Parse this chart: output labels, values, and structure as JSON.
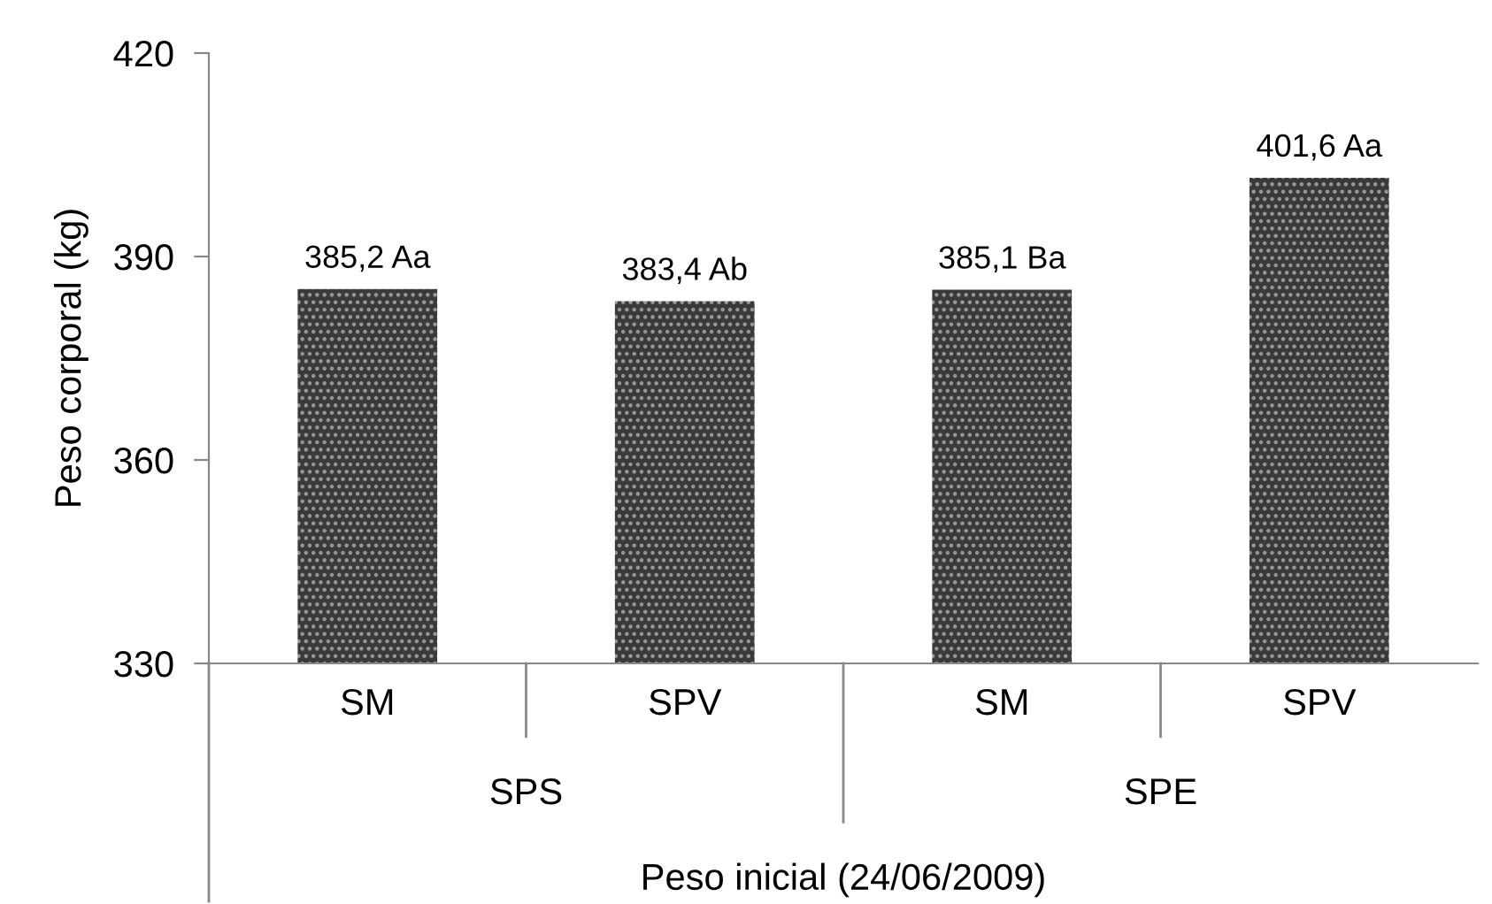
{
  "chart_data": {
    "type": "bar",
    "xlabel": "Peso inicial (24/06/2009)",
    "ylabel": "Peso corporal (kg)",
    "categories": [
      "SM",
      "SPV",
      "SM",
      "SPV"
    ],
    "values": [
      385.2,
      383.4,
      385.1,
      401.6
    ],
    "value_labels": [
      "385,2 Aa",
      "383,4 Ab",
      "385,1 Ba",
      "401,6 Aa"
    ],
    "color": "#3a3a3a",
    "annotations": [
      "SPS",
      "SPE"
    ],
    "ylim": [
      330,
      420
    ],
    "yticks": [
      330,
      360,
      390,
      420
    ],
    "grid": false
  }
}
